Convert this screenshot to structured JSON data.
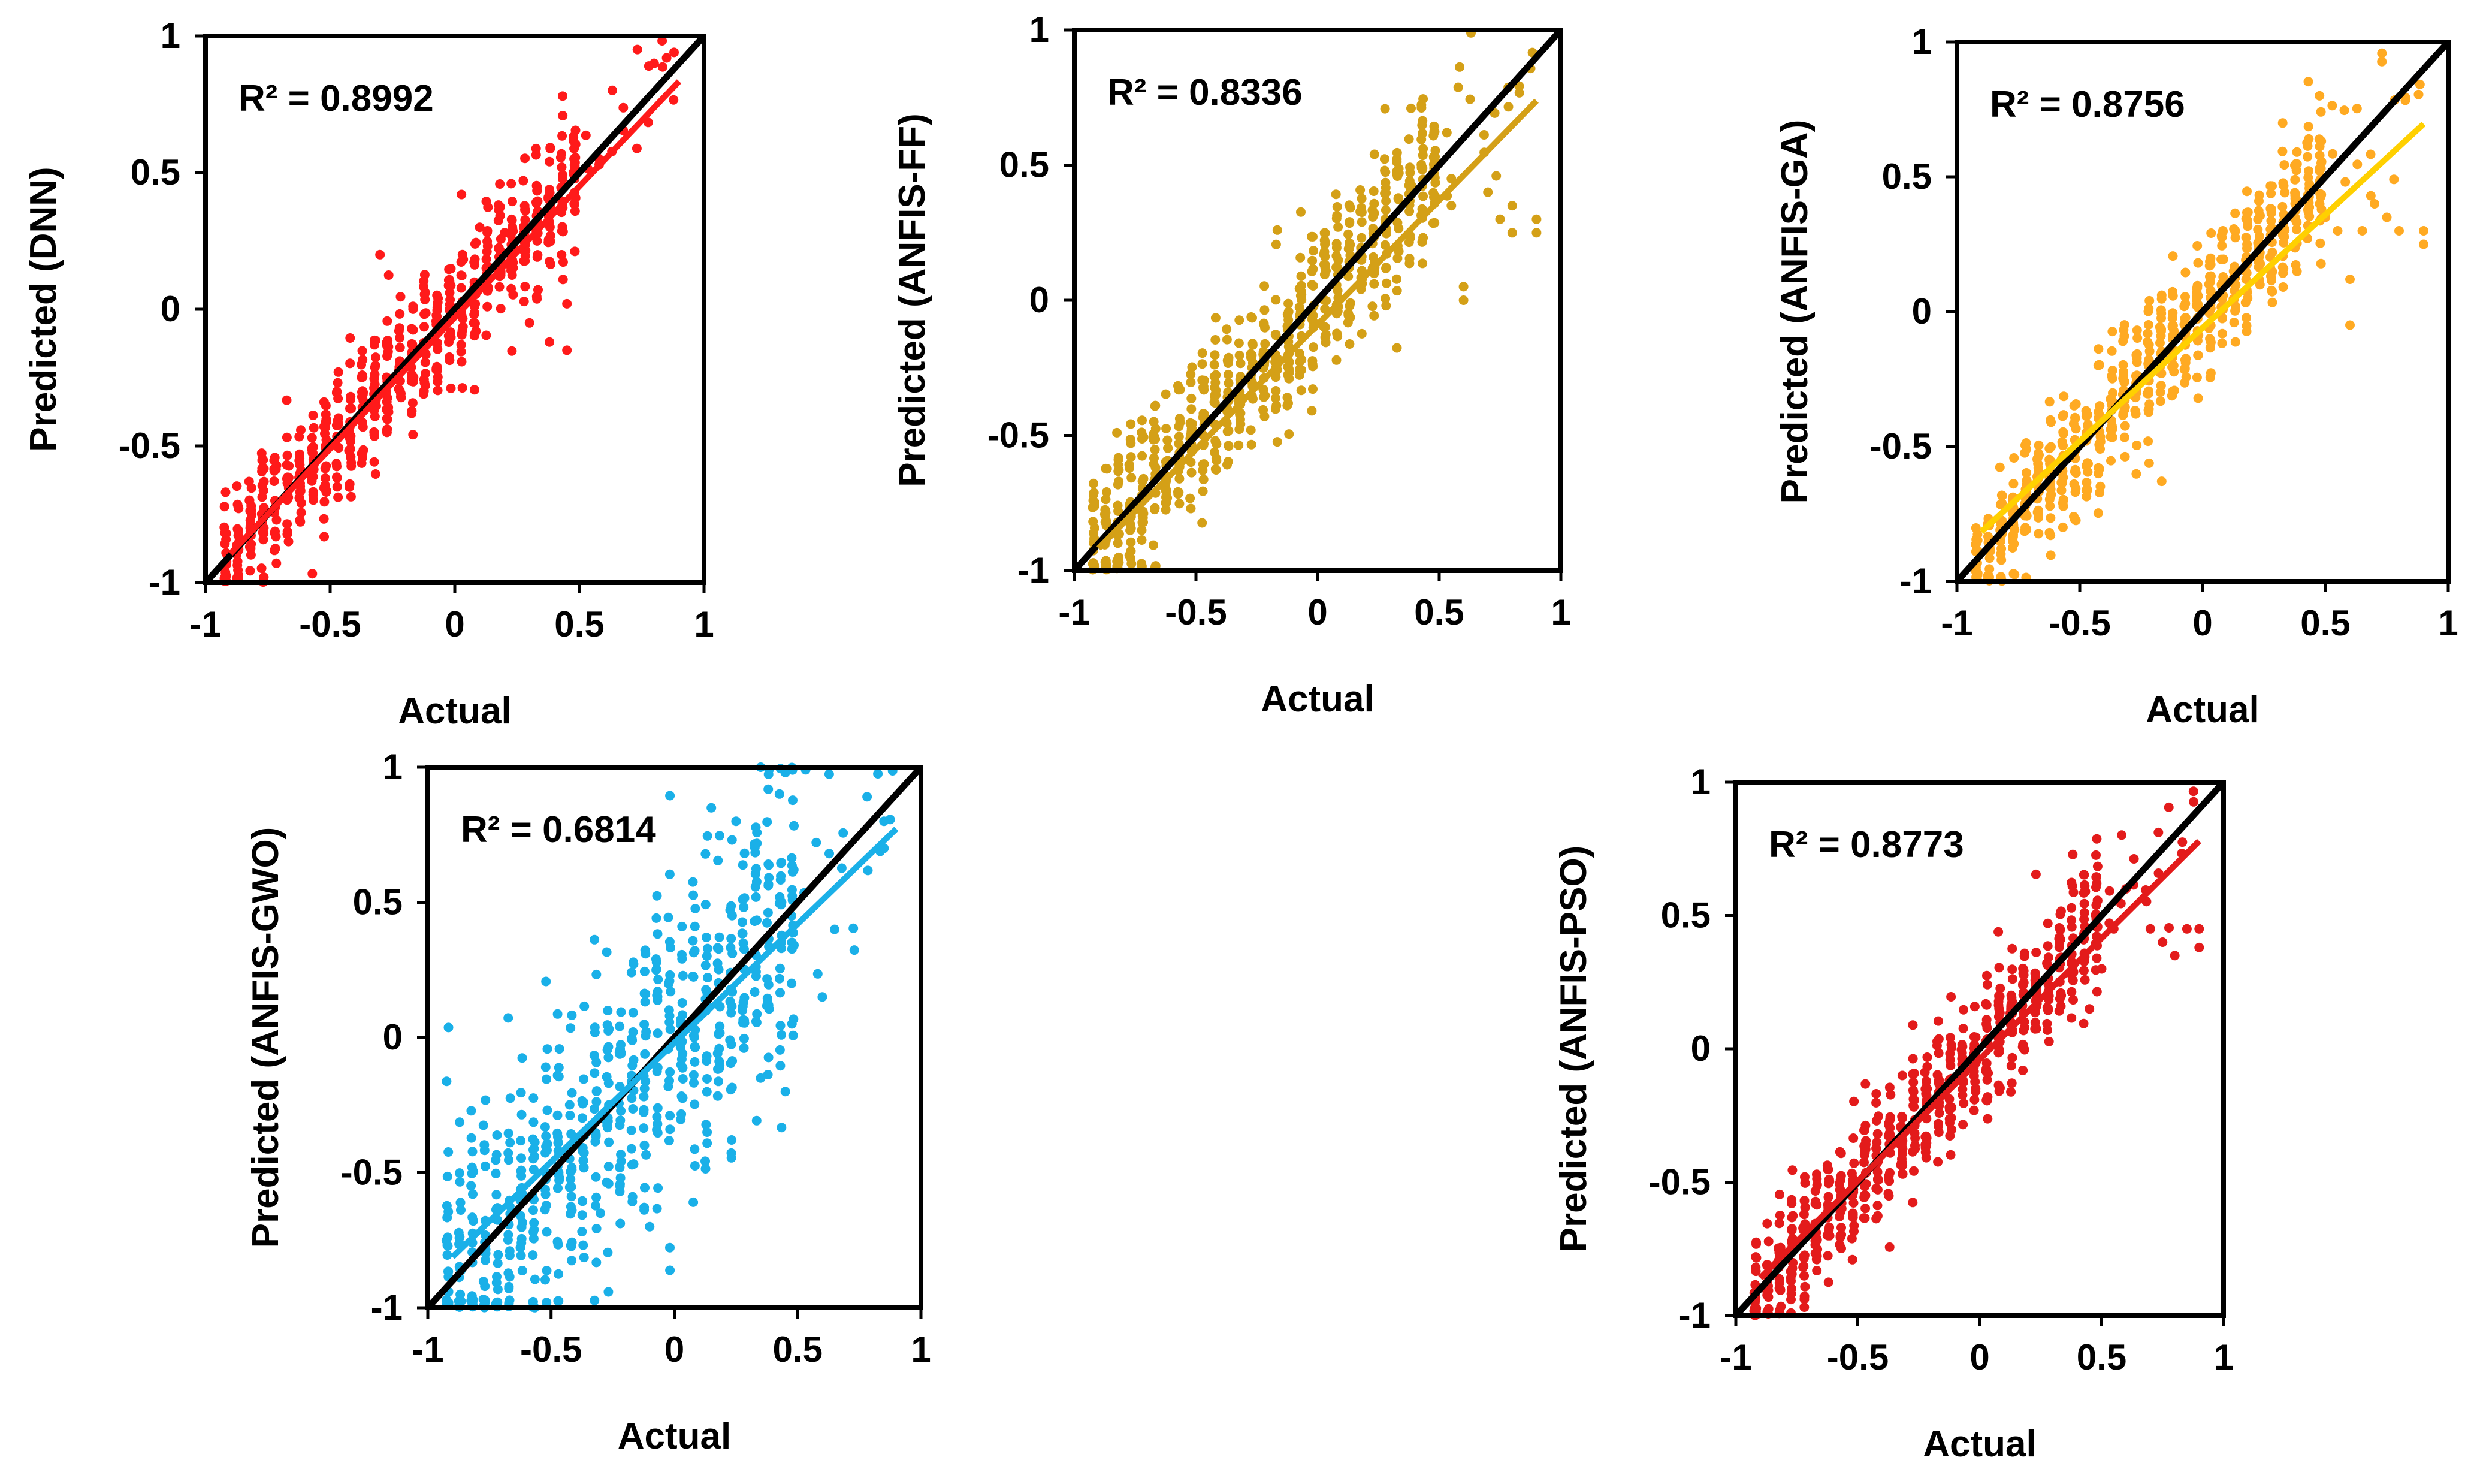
{
  "figure": {
    "background": "#ffffff",
    "identity_color": "#000000"
  },
  "chart_data": [
    {
      "type": "scatter",
      "id": "dnn",
      "xlabel": "Actual",
      "ylabel": "Predicted (DNN)",
      "r2_label": "R² = 0.8992",
      "xlim": [
        -1,
        1
      ],
      "ylim": [
        -1,
        1
      ],
      "xticks": [
        -1,
        -0.5,
        0,
        0.5,
        1
      ],
      "yticks": [
        -1,
        -0.5,
        0,
        0.5,
        1
      ],
      "xtick_labels": [
        "-1",
        "-0.5",
        "0",
        "0.5",
        "1"
      ],
      "ytick_labels": [
        "-1",
        "-0.5",
        "0",
        "0.5",
        "1"
      ],
      "color": "#ff1a1a",
      "fit": {
        "slope": 0.96,
        "intercept": -0.03,
        "x_range": [
          -0.9,
          0.9
        ]
      },
      "identity_line": true,
      "scatter_spread": 0.13,
      "outliers": [
        [
          0.45,
          0.02
        ],
        [
          0.45,
          -0.15
        ],
        [
          0.38,
          -0.12
        ],
        [
          0.3,
          -0.05
        ],
        [
          0.8,
          0.9
        ],
        [
          0.85,
          0.92
        ],
        [
          0.2,
          0.28
        ],
        [
          -0.3,
          0.2
        ],
        [
          0.1,
          0.3
        ]
      ]
    },
    {
      "type": "scatter",
      "id": "anfis-ff",
      "xlabel": "Actual",
      "ylabel": "Predicted (ANFIS-FF)",
      "r2_label": "R² = 0.8336",
      "xlim": [
        -1,
        1
      ],
      "ylim": [
        -1,
        1
      ],
      "xticks": [
        -1,
        -0.5,
        0,
        0.5,
        1
      ],
      "yticks": [
        -1,
        -0.5,
        0,
        0.5,
        1
      ],
      "xtick_labels": [
        "-1",
        "-0.5",
        "0",
        "0.5",
        "1"
      ],
      "ytick_labels": [
        "-1",
        "-0.5",
        "0",
        "0.5",
        "1"
      ],
      "color": "#d4a017",
      "fit": {
        "slope": 0.92,
        "intercept": -0.09,
        "x_range": [
          -0.9,
          0.9
        ]
      },
      "identity_line": true,
      "scatter_spread": 0.16,
      "outliers": [
        [
          0.55,
          0.45
        ],
        [
          0.55,
          0.35
        ],
        [
          0.6,
          0.05
        ],
        [
          0.6,
          0.0
        ],
        [
          0.7,
          0.4
        ],
        [
          0.75,
          0.3
        ],
        [
          0.8,
          0.35
        ],
        [
          0.8,
          0.25
        ],
        [
          0.9,
          0.3
        ],
        [
          0.9,
          0.25
        ]
      ]
    },
    {
      "type": "scatter",
      "id": "anfis-ga",
      "xlabel": "Actual",
      "ylabel": "Predicted (ANFIS-GA)",
      "r2_label": "R² = 0.8756",
      "xlim": [
        -1,
        1
      ],
      "ylim": [
        -1,
        1
      ],
      "xticks": [
        -1,
        -0.5,
        0,
        0.5,
        1
      ],
      "yticks": [
        -1,
        -0.5,
        0,
        0.5,
        1
      ],
      "xtick_labels": [
        "-1",
        "-0.5",
        "0",
        "0.5",
        "1"
      ],
      "ytick_labels": [
        "-1",
        "-0.5",
        "0",
        "0.5",
        "1"
      ],
      "color": "#ffaa22",
      "fit_color": "#ffd000",
      "fit": {
        "slope": 0.84,
        "intercept": -0.06,
        "x_range": [
          -0.9,
          0.9
        ]
      },
      "identity_line": true,
      "scatter_spread": 0.13,
      "outliers": [
        [
          0.5,
          0.35
        ],
        [
          0.55,
          0.3
        ],
        [
          0.6,
          0.12
        ],
        [
          0.6,
          -0.05
        ],
        [
          0.65,
          0.3
        ],
        [
          0.7,
          0.4
        ],
        [
          0.75,
          0.35
        ],
        [
          0.8,
          0.3
        ],
        [
          0.9,
          0.3
        ],
        [
          0.9,
          0.25
        ]
      ]
    },
    {
      "type": "scatter",
      "id": "anfis-gwo",
      "xlabel": "Actual",
      "ylabel": "Predicted (ANFIS-GWO)",
      "r2_label": "R² = 0.6814",
      "xlim": [
        -1,
        1
      ],
      "ylim": [
        -1,
        1
      ],
      "xticks": [
        -1,
        -0.5,
        0,
        0.5,
        1
      ],
      "yticks": [
        -1,
        -0.5,
        0,
        0.5,
        1
      ],
      "xtick_labels": [
        "-1",
        "-0.5",
        "0",
        "0.5",
        "1"
      ],
      "ytick_labels": [
        "-1",
        "-0.5",
        "0",
        "0.5",
        "1"
      ],
      "color": "#1ab0e8",
      "fit": {
        "slope": 0.88,
        "intercept": -0.02,
        "x_range": [
          -0.9,
          0.9
        ]
      },
      "identity_line": true,
      "scatter_spread": 0.28,
      "outliers": [
        [
          0.35,
          1.0
        ],
        [
          0.45,
          0.98
        ],
        [
          0.15,
          0.85
        ],
        [
          0.25,
          0.8
        ],
        [
          0.35,
          -0.15
        ],
        [
          0.45,
          -0.2
        ],
        [
          -0.3,
          -0.65
        ],
        [
          -0.1,
          -0.7
        ],
        [
          0.85,
          0.8
        ],
        [
          0.85,
          0.7
        ],
        [
          0.65,
          0.4
        ],
        [
          0.6,
          0.15
        ]
      ]
    },
    {
      "type": "scatter",
      "id": "anfis-pso",
      "xlabel": "Actual",
      "ylabel": "Predicted (ANFIS-PSO)",
      "r2_label": "R² = 0.8773",
      "xlim": [
        -1,
        1
      ],
      "ylim": [
        -1,
        1
      ],
      "xticks": [
        -1,
        -0.5,
        0,
        0.5,
        1
      ],
      "yticks": [
        -1,
        -0.5,
        0,
        0.5,
        1
      ],
      "xtick_labels": [
        "-1",
        "-0.5",
        "0",
        "0.5",
        "1"
      ],
      "ytick_labels": [
        "-1",
        "-0.5",
        "0",
        "0.5",
        "1"
      ],
      "color": "#e31b1b",
      "fit": {
        "slope": 0.91,
        "intercept": -0.04,
        "x_range": [
          -0.9,
          0.9
        ]
      },
      "identity_line": true,
      "scatter_spread": 0.13,
      "outliers": [
        [
          0.45,
          0.15
        ],
        [
          0.5,
          0.3
        ],
        [
          0.55,
          0.45
        ],
        [
          0.6,
          0.6
        ],
        [
          0.7,
          0.45
        ],
        [
          0.75,
          0.4
        ],
        [
          0.8,
          0.35
        ],
        [
          0.85,
          0.45
        ],
        [
          0.9,
          0.45
        ],
        [
          0.9,
          0.38
        ]
      ]
    }
  ]
}
